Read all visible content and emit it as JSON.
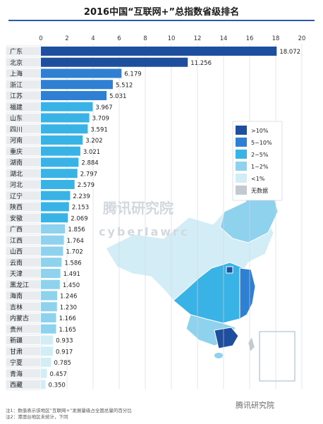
{
  "title": "2016中国“互联网+”总指数省级排名",
  "chart_data": {
    "type": "bar",
    "orientation": "horizontal",
    "xlim": [
      0,
      20
    ],
    "ticks": [
      0,
      2,
      4,
      6,
      8,
      10,
      12,
      14,
      16,
      18,
      20
    ],
    "categories": [
      "广东",
      "北京",
      "上海",
      "浙江",
      "江苏",
      "福建",
      "山东",
      "四川",
      "河南",
      "重庆",
      "湖南",
      "湖北",
      "河北",
      "辽宁",
      "陕西",
      "安徽",
      "广西",
      "江西",
      "山西",
      "云南",
      "天津",
      "黑龙江",
      "海南",
      "吉林",
      "内蒙古",
      "贵州",
      "新疆",
      "甘肃",
      "宁夏",
      "青海",
      "西藏"
    ],
    "values": [
      18.072,
      11.256,
      6.179,
      5.512,
      5.031,
      3.967,
      3.709,
      3.591,
      3.202,
      3.021,
      2.884,
      2.797,
      2.579,
      2.239,
      2.153,
      2.069,
      1.856,
      1.764,
      1.702,
      1.586,
      1.491,
      1.45,
      1.246,
      1.23,
      1.166,
      1.165,
      0.933,
      0.917,
      0.785,
      0.457,
      0.35
    ],
    "value_labels": [
      "18.072",
      "11.256",
      "6.179",
      "5.512",
      "5.031",
      "3.967",
      "3.709",
      "3.591",
      "3.202",
      "3.021",
      "2.884",
      "2.797",
      "2.579",
      "2.239",
      "2.153",
      "2.069",
      "1.856",
      "1.764",
      "1.702",
      "1.586",
      "1.491",
      "1.450",
      "1.246",
      "1.230",
      "1.166",
      "1.165",
      "0.933",
      "0.917",
      "0.785",
      "0.457",
      "0.350"
    ],
    "legend": {
      "placement": "right",
      "items": [
        {
          "label": ">10%",
          "color": "#1e4e9e"
        },
        {
          "label": "5~10%",
          "color": "#2f7fd2"
        },
        {
          "label": "2~5%",
          "color": "#39b3e6"
        },
        {
          "label": "1~2%",
          "color": "#8ed2ee"
        },
        {
          "label": "<1%",
          "color": "#d3edf6"
        },
        {
          "label": "无数据",
          "color": "#c3c9d0"
        }
      ]
    }
  },
  "watermark": {
    "text": "腾讯研究院",
    "sub": "cyberlawrc"
  },
  "notes": [
    "注1：数值表示该地区“互联网+”发展量级占全国总量的百分比",
    "注2：港澳台地区未统计，下同"
  ],
  "logo_text": "腾讯研究院"
}
